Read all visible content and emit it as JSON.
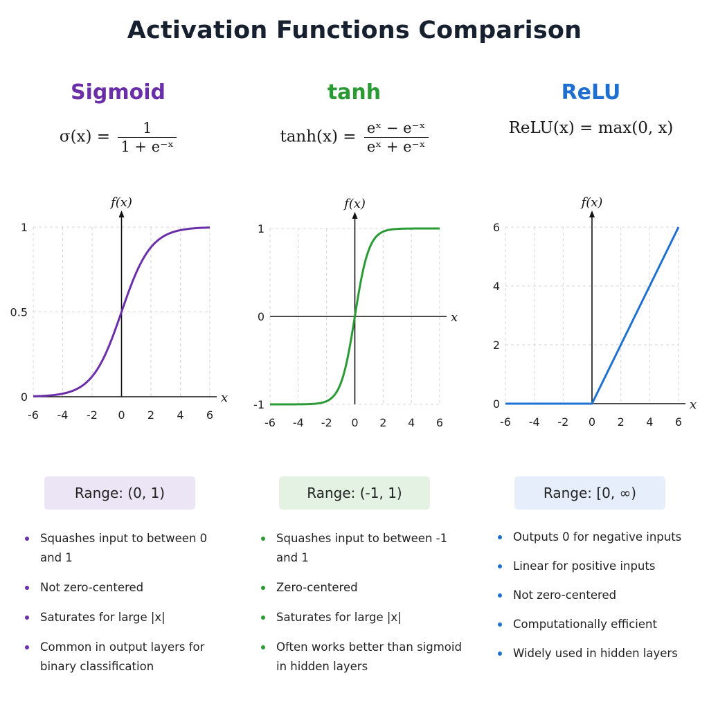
{
  "title": "Activation Functions Comparison",
  "colors": {
    "sigmoid": "#6a2fa8",
    "tanh": "#2a9a35",
    "relu": "#1f6fd1",
    "sigmoid_badge": "#ece5f5",
    "tanh_badge": "#e3f2e2",
    "relu_badge": "#e5eefa"
  },
  "panels": [
    {
      "name": "Sigmoid",
      "formula": {
        "lhs": "σ(x) =",
        "num": "1",
        "den": "1 + e⁻ˣ"
      },
      "range": "Range: (0, 1)",
      "bullets": [
        "Squashes input to between 0 and 1",
        "Not zero-centered",
        "Saturates for large |x|",
        "Common in output layers for binary classification"
      ]
    },
    {
      "name": "tanh",
      "formula": {
        "lhs": "tanh(x) =",
        "num": "eˣ − e⁻ˣ",
        "den": "eˣ + e⁻ˣ"
      },
      "range": "Range: (-1, 1)",
      "bullets": [
        "Squashes input to between -1 and 1",
        "Zero-centered",
        "Saturates for large |x|",
        "Often works better than sigmoid in hidden layers"
      ]
    },
    {
      "name": "ReLU",
      "formula": {
        "lhs": "ReLU(x) = max(0, x)",
        "num": "",
        "den": ""
      },
      "range": "Range: [0, ∞)",
      "bullets": [
        "Outputs 0 for negative inputs",
        "Linear for positive inputs",
        "Not zero-centered",
        "Computationally efficient",
        "Widely used in hidden layers"
      ]
    }
  ],
  "chart_data": [
    {
      "type": "line",
      "title": "Sigmoid",
      "xlabel": "x",
      "ylabel": "f(x)",
      "xlim": [
        -6,
        6
      ],
      "ylim": [
        0,
        1
      ],
      "grid": true,
      "x_ticks": [
        "-6",
        "-4",
        "-2",
        "0",
        "2",
        "4",
        "6"
      ],
      "y_ticks": [
        "0",
        "0.5",
        "1"
      ],
      "series": [
        {
          "function": "sigmoid",
          "x": [
            -6,
            -4,
            -2,
            0,
            2,
            4,
            6
          ],
          "y": [
            0.0025,
            0.018,
            0.119,
            0.5,
            0.881,
            0.982,
            0.9975
          ]
        }
      ]
    },
    {
      "type": "line",
      "title": "tanh",
      "xlabel": "x",
      "ylabel": "f(x)",
      "xlim": [
        -6,
        6
      ],
      "ylim": [
        -1,
        1
      ],
      "grid": true,
      "x_ticks": [
        "-6",
        "-4",
        "-2",
        "0",
        "2",
        "4",
        "6"
      ],
      "y_ticks": [
        "-1",
        "0",
        "1"
      ],
      "series": [
        {
          "function": "tanh",
          "x": [
            -6,
            -4,
            -2,
            0,
            2,
            4,
            6
          ],
          "y": [
            -1.0,
            -0.999,
            -0.964,
            0,
            0.964,
            0.999,
            1.0
          ]
        }
      ]
    },
    {
      "type": "line",
      "title": "ReLU",
      "xlabel": "x",
      "ylabel": "f(x)",
      "xlim": [
        -6,
        6
      ],
      "ylim": [
        0,
        6
      ],
      "grid": true,
      "x_ticks": [
        "-6",
        "-4",
        "-2",
        "0",
        "2",
        "4",
        "6"
      ],
      "y_ticks": [
        "0",
        "2",
        "4",
        "6"
      ],
      "series": [
        {
          "function": "relu",
          "x": [
            -6,
            -4,
            -2,
            0,
            2,
            4,
            6
          ],
          "y": [
            0,
            0,
            0,
            0,
            2,
            4,
            6
          ]
        }
      ]
    }
  ]
}
